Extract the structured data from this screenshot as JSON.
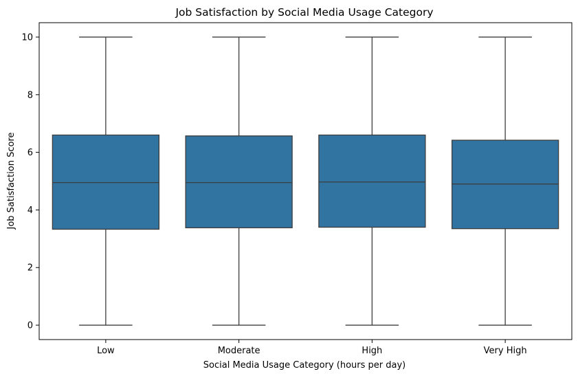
{
  "chart_data": {
    "type": "box",
    "title": "Job Satisfaction by Social Media Usage Category",
    "xlabel": "Social Media Usage Category (hours per day)",
    "ylabel": "Job Satisfaction Score",
    "categories": [
      "Low",
      "Moderate",
      "High",
      "Very High"
    ],
    "boxes": [
      {
        "category": "Low",
        "min": 0,
        "q1": 3.33,
        "median": 4.95,
        "q3": 6.6,
        "max": 10
      },
      {
        "category": "Moderate",
        "min": 0,
        "q1": 3.38,
        "median": 4.95,
        "q3": 6.57,
        "max": 10
      },
      {
        "category": "High",
        "min": 0,
        "q1": 3.4,
        "median": 4.97,
        "q3": 6.6,
        "max": 10
      },
      {
        "category": "Very High",
        "min": 0,
        "q1": 3.35,
        "median": 4.9,
        "q3": 6.42,
        "max": 10
      }
    ],
    "ylim": [
      -0.5,
      10.5
    ],
    "yticks": [
      0,
      2,
      4,
      6,
      8,
      10
    ],
    "grid": false,
    "colors": {
      "box_fill": "#3274a1",
      "line": "#3d3d3d",
      "axis": "#000000"
    }
  }
}
